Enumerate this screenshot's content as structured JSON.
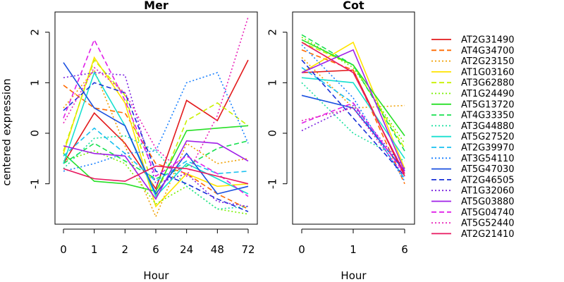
{
  "chart_data": [
    {
      "type": "line",
      "title": "Mer",
      "xlabel": "Hour",
      "ylabel": "centered expression",
      "categories": [
        "0",
        "1",
        "2",
        "6",
        "24",
        "48",
        "72"
      ],
      "ylim": [
        -1.8,
        2.4
      ],
      "yticks": [
        "-1",
        "0",
        "1",
        "2"
      ],
      "series": [
        {
          "name": "AT2G31490",
          "values": [
            -0.6,
            0.4,
            -0.2,
            -1.1,
            0.65,
            0.25,
            1.45
          ]
        },
        {
          "name": "AT4G34700",
          "values": [
            0.95,
            0.5,
            0.4,
            -0.6,
            -0.8,
            -1.2,
            -1.5
          ]
        },
        {
          "name": "AT2G23150",
          "values": [
            0.5,
            1.25,
            -0.25,
            -1.65,
            -0.2,
            -0.6,
            -0.5
          ]
        },
        {
          "name": "AT1G03160",
          "values": [
            -0.4,
            1.5,
            0.6,
            -1.45,
            -0.8,
            -1.05,
            -1.0
          ]
        },
        {
          "name": "AT3G62880",
          "values": [
            -0.35,
            1.45,
            0.75,
            -1.25,
            0.25,
            0.6,
            0.15
          ]
        },
        {
          "name": "AT1G24490",
          "values": [
            -0.55,
            -0.35,
            -0.6,
            -1.4,
            -1.05,
            -1.5,
            -1.6
          ]
        },
        {
          "name": "AT5G13720",
          "values": [
            -0.4,
            -0.95,
            -1.0,
            -1.15,
            0.05,
            0.1,
            0.15
          ]
        },
        {
          "name": "AT4G33350",
          "values": [
            -0.6,
            -0.2,
            -0.55,
            -0.9,
            -0.65,
            -0.3,
            -0.15
          ]
        },
        {
          "name": "AT3G44880",
          "values": [
            -0.7,
            -0.1,
            -0.05,
            -0.35,
            -1.05,
            -1.5,
            -1.45
          ]
        },
        {
          "name": "AT5G27520",
          "values": [
            -0.6,
            1.2,
            0.15,
            -1.25,
            -0.6,
            -0.9,
            -1.2
          ]
        },
        {
          "name": "AT2G39970",
          "values": [
            -0.45,
            0.1,
            -0.4,
            -0.95,
            -0.55,
            -0.8,
            -0.75
          ]
        },
        {
          "name": "AT3G54110",
          "values": [
            -0.75,
            -0.6,
            -0.4,
            -0.35,
            1.0,
            1.2,
            -0.2
          ]
        },
        {
          "name": "AT5G47030",
          "values": [
            1.4,
            0.5,
            0.15,
            -1.2,
            -0.4,
            -1.2,
            -1.05
          ]
        },
        {
          "name": "AT2G46505",
          "values": [
            0.45,
            1.0,
            0.8,
            -0.75,
            -1.0,
            -1.3,
            -1.55
          ]
        },
        {
          "name": "AT1G32060",
          "values": [
            1.1,
            1.2,
            1.15,
            -1.0,
            -0.8,
            -1.35,
            -1.45
          ]
        },
        {
          "name": "AT5G03880",
          "values": [
            -0.25,
            -0.4,
            -0.45,
            -1.3,
            -0.15,
            -0.2,
            -0.55
          ]
        },
        {
          "name": "AT5G04740",
          "values": [
            0.3,
            1.85,
            0.65,
            -0.85,
            -0.45,
            -0.8,
            -1.25
          ]
        },
        {
          "name": "AT5G52440",
          "values": [
            0.2,
            1.3,
            0.8,
            -0.3,
            -0.85,
            0.35,
            2.3
          ]
        },
        {
          "name": "AT2G21410",
          "values": [
            -0.7,
            -0.9,
            -0.95,
            -0.65,
            -0.7,
            -0.85,
            -1.0
          ]
        }
      ]
    },
    {
      "type": "line",
      "title": "Cot",
      "xlabel": "Hour",
      "categories": [
        "0",
        "1",
        "6"
      ],
      "ylim": [
        -1.8,
        2.4
      ],
      "yticks": [
        "-1",
        "0",
        "1",
        "2"
      ],
      "series": [
        {
          "name": "AT2G31490",
          "values": [
            1.2,
            1.25,
            -0.85
          ]
        },
        {
          "name": "AT4G34700",
          "values": [
            1.65,
            1.25,
            -1.0
          ]
        },
        {
          "name": "AT2G23150",
          "values": [
            1.5,
            0.5,
            0.55
          ]
        },
        {
          "name": "AT1G03160",
          "values": [
            1.2,
            1.8,
            -0.7
          ]
        },
        {
          "name": "AT3G62880",
          "values": [
            1.8,
            1.35,
            -0.3
          ]
        },
        {
          "name": "AT1G24490",
          "values": [
            1.9,
            1.3,
            -0.2
          ]
        },
        {
          "name": "AT5G13720",
          "values": [
            1.85,
            1.35,
            -0.05
          ]
        },
        {
          "name": "AT4G33350",
          "values": [
            1.95,
            1.35,
            -0.35
          ]
        },
        {
          "name": "AT3G44880",
          "values": [
            1.0,
            0.0,
            -0.55
          ]
        },
        {
          "name": "AT5G27520",
          "values": [
            1.1,
            1.0,
            -0.5
          ]
        },
        {
          "name": "AT2G39970",
          "values": [
            1.3,
            0.6,
            -0.9
          ]
        },
        {
          "name": "AT3G54110",
          "values": [
            1.75,
            0.7,
            -0.95
          ]
        },
        {
          "name": "AT5G47030",
          "values": [
            0.75,
            0.5,
            -0.75
          ]
        },
        {
          "name": "AT2G46505",
          "values": [
            1.45,
            0.3,
            -0.85
          ]
        },
        {
          "name": "AT1G32060",
          "values": [
            0.05,
            0.55,
            -0.7
          ]
        },
        {
          "name": "AT5G03880",
          "values": [
            1.2,
            1.65,
            -0.75
          ]
        },
        {
          "name": "AT5G04740",
          "values": [
            0.2,
            0.6,
            -0.8
          ]
        },
        {
          "name": "AT5G52440",
          "values": [
            0.25,
            0.5,
            -0.85
          ]
        },
        {
          "name": "AT2G21410",
          "values": [
            1.8,
            1.2,
            -0.8
          ]
        }
      ]
    }
  ],
  "legend": {
    "entries": [
      {
        "name": "AT2G31490",
        "color": "#e31a1c",
        "dash": "solid"
      },
      {
        "name": "AT4G34700",
        "color": "#ff6a00",
        "dash": "dashed"
      },
      {
        "name": "AT2G23150",
        "color": "#f0a000",
        "dash": "dotted"
      },
      {
        "name": "AT1G03160",
        "color": "#ffe400",
        "dash": "solid"
      },
      {
        "name": "AT3G62880",
        "color": "#c8f000",
        "dash": "dashed"
      },
      {
        "name": "AT1G24490",
        "color": "#78f000",
        "dash": "dotted"
      },
      {
        "name": "AT5G13720",
        "color": "#28e028",
        "dash": "solid"
      },
      {
        "name": "AT4G33350",
        "color": "#18e050",
        "dash": "dashed"
      },
      {
        "name": "AT3G44880",
        "color": "#18e0a0",
        "dash": "dotted"
      },
      {
        "name": "AT5G27520",
        "color": "#18e0d0",
        "dash": "solid"
      },
      {
        "name": "AT2G39970",
        "color": "#18c0f0",
        "dash": "dashed"
      },
      {
        "name": "AT3G54110",
        "color": "#1a80ff",
        "dash": "dotted"
      },
      {
        "name": "AT5G47030",
        "color": "#1a50e0",
        "dash": "solid"
      },
      {
        "name": "AT2G46505",
        "color": "#1830d8",
        "dash": "dashed"
      },
      {
        "name": "AT1G32060",
        "color": "#7a20e0",
        "dash": "dotted"
      },
      {
        "name": "AT5G03880",
        "color": "#a020e8",
        "dash": "solid"
      },
      {
        "name": "AT5G04740",
        "color": "#e020e8",
        "dash": "dashed"
      },
      {
        "name": "AT5G52440",
        "color": "#e820b8",
        "dash": "dotted"
      },
      {
        "name": "AT2G21410",
        "color": "#e81860",
        "dash": "solid"
      }
    ]
  }
}
